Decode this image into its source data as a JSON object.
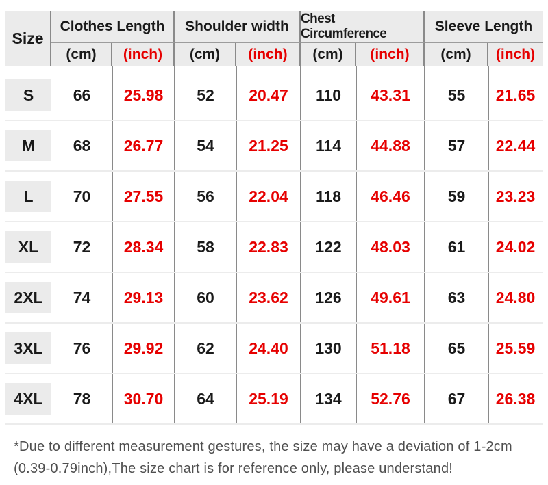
{
  "colors": {
    "accent_red": "#e60000",
    "header_background": "#ebebeb",
    "column_line": "#8a8a8a",
    "row_line": "#ececec",
    "text": "#1a1a1a",
    "footnote_text": "#4f4f4f"
  },
  "table": {
    "size_header": "Size",
    "groups": [
      {
        "label": "Clothes Length"
      },
      {
        "label": "Shoulder width"
      },
      {
        "label": "Chest Circumference"
      },
      {
        "label": "Sleeve Length"
      }
    ],
    "unit_cm": "(cm)",
    "unit_inch": "(inch)",
    "rows": [
      {
        "size": "S",
        "values": [
          "66",
          "25.98",
          "52",
          "20.47",
          "110",
          "43.31",
          "55",
          "21.65"
        ]
      },
      {
        "size": "M",
        "values": [
          "68",
          "26.77",
          "54",
          "21.25",
          "114",
          "44.88",
          "57",
          "22.44"
        ]
      },
      {
        "size": "L",
        "values": [
          "70",
          "27.55",
          "56",
          "22.04",
          "118",
          "46.46",
          "59",
          "23.23"
        ]
      },
      {
        "size": "XL",
        "values": [
          "72",
          "28.34",
          "58",
          "22.83",
          "122",
          "48.03",
          "61",
          "24.02"
        ]
      },
      {
        "size": "2XL",
        "values": [
          "74",
          "29.13",
          "60",
          "23.62",
          "126",
          "49.61",
          "63",
          "24.80"
        ]
      },
      {
        "size": "3XL",
        "values": [
          "76",
          "29.92",
          "62",
          "24.40",
          "130",
          "51.18",
          "65",
          "25.59"
        ]
      },
      {
        "size": "4XL",
        "values": [
          "78",
          "30.70",
          "64",
          "25.19",
          "134",
          "52.76",
          "67",
          "26.38"
        ]
      }
    ]
  },
  "footnote": {
    "line1": "*Due to different measurement gestures, the size may have a deviation of 1-2cm",
    "line2": "(0.39-0.79inch),The size chart is for reference only, please understand!"
  },
  "chart_data": {
    "type": "table",
    "title": "Garment size chart",
    "columns": [
      "Size",
      "Clothes Length (cm)",
      "Clothes Length (inch)",
      "Shoulder width (cm)",
      "Shoulder width (inch)",
      "Chest Circumference (cm)",
      "Chest Circumference (inch)",
      "Sleeve Length (cm)",
      "Sleeve Length (inch)"
    ],
    "rows": [
      [
        "S",
        66,
        25.98,
        52,
        20.47,
        110,
        43.31,
        55,
        21.65
      ],
      [
        "M",
        68,
        26.77,
        54,
        21.25,
        114,
        44.88,
        57,
        22.44
      ],
      [
        "L",
        70,
        27.55,
        56,
        22.04,
        118,
        46.46,
        59,
        23.23
      ],
      [
        "XL",
        72,
        28.34,
        58,
        22.83,
        122,
        48.03,
        61,
        24.02
      ],
      [
        "2XL",
        74,
        29.13,
        60,
        23.62,
        126,
        49.61,
        63,
        24.8
      ],
      [
        "3XL",
        76,
        29.92,
        62,
        24.4,
        130,
        51.18,
        65,
        25.59
      ],
      [
        "4XL",
        78,
        30.7,
        64,
        25.19,
        134,
        52.76,
        67,
        26.38
      ]
    ],
    "cm_value_color": "#1a1a1a",
    "inch_value_color": "#e60000"
  }
}
